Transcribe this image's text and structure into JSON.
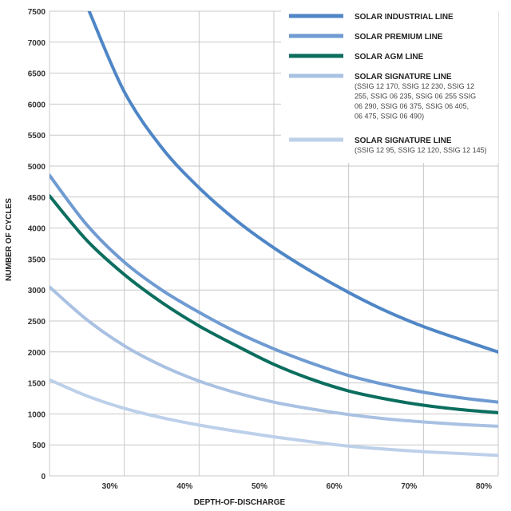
{
  "chart_data": {
    "type": "line",
    "title": "",
    "xlabel": "DEPTH-OF-DISCHARGE",
    "ylabel": "NUMBER OF CYCLES",
    "xlim": [
      20,
      80
    ],
    "ylim": [
      0,
      7500
    ],
    "x_ticks": [
      30,
      40,
      50,
      60,
      70,
      80
    ],
    "x_tick_labels": [
      "30%",
      "40%",
      "50%",
      "60%",
      "70%",
      "80%"
    ],
    "y_ticks": [
      0,
      500,
      1000,
      1500,
      2000,
      2500,
      3000,
      3500,
      4000,
      4500,
      5000,
      5500,
      6000,
      6500,
      7000,
      7500
    ],
    "y_tick_labels": [
      "0",
      "500",
      "1000",
      "1500",
      "2000",
      "2500",
      "3000",
      "3500",
      "4000",
      "4500",
      "5000",
      "5500",
      "6000",
      "6500",
      "7000",
      "7500"
    ],
    "grid": true,
    "legend_position": "top-right",
    "series": [
      {
        "name": "SOLAR INDUSTRIAL LINE",
        "subtitle_lines": [],
        "color": "#4f86c6",
        "x": [
          25.3,
          30,
          35,
          40,
          45,
          50,
          55,
          60,
          65,
          70,
          75,
          80
        ],
        "y": [
          7500,
          6200,
          5300,
          4650,
          4120,
          3680,
          3300,
          2960,
          2660,
          2410,
          2200,
          2000
        ]
      },
      {
        "name": "SOLAR PREMIUM LINE",
        "subtitle_lines": [],
        "color": "#6f9bd2",
        "x": [
          20,
          25,
          30,
          35,
          40,
          45,
          50,
          55,
          60,
          65,
          70,
          75,
          80
        ],
        "y": [
          4850,
          4050,
          3450,
          3000,
          2640,
          2320,
          2050,
          1820,
          1620,
          1470,
          1350,
          1260,
          1190
        ]
      },
      {
        "name": "SOLAR AGM LINE",
        "subtitle_lines": [],
        "color": "#0b6e5f",
        "x": [
          20,
          25,
          30,
          35,
          40,
          45,
          50,
          55,
          60,
          65,
          70,
          75,
          80
        ],
        "y": [
          4520,
          3800,
          3250,
          2800,
          2420,
          2100,
          1800,
          1560,
          1370,
          1240,
          1140,
          1070,
          1020
        ]
      },
      {
        "name": "SOLAR SIGNATURE LINE",
        "subtitle_lines": [
          "(SSIG 12 170, SSIG 12 230, SSIG 12",
          "255, SSIG 06 235, SSIG 06 255  SSIG",
          "06 290, SSIG 06 375, SSIG 06 405,",
          "06 475, SSIG 06 490)"
        ],
        "color": "#a9c1e2",
        "x": [
          20,
          25,
          30,
          35,
          40,
          45,
          50,
          55,
          60,
          65,
          70,
          75,
          80
        ],
        "y": [
          3050,
          2520,
          2100,
          1780,
          1530,
          1340,
          1190,
          1080,
          990,
          920,
          870,
          830,
          800
        ]
      },
      {
        "name": "SOLAR SIGNATURE LINE",
        "subtitle_lines": [
          "(SSIG 12 95, SSIG 12 120, SSIG 12 145)"
        ],
        "color": "#bdd0ea",
        "x": [
          20,
          25,
          30,
          35,
          40,
          45,
          50,
          55,
          60,
          65,
          70,
          75,
          80
        ],
        "y": [
          1550,
          1290,
          1090,
          940,
          820,
          720,
          630,
          550,
          480,
          430,
          390,
          360,
          330
        ]
      }
    ]
  }
}
